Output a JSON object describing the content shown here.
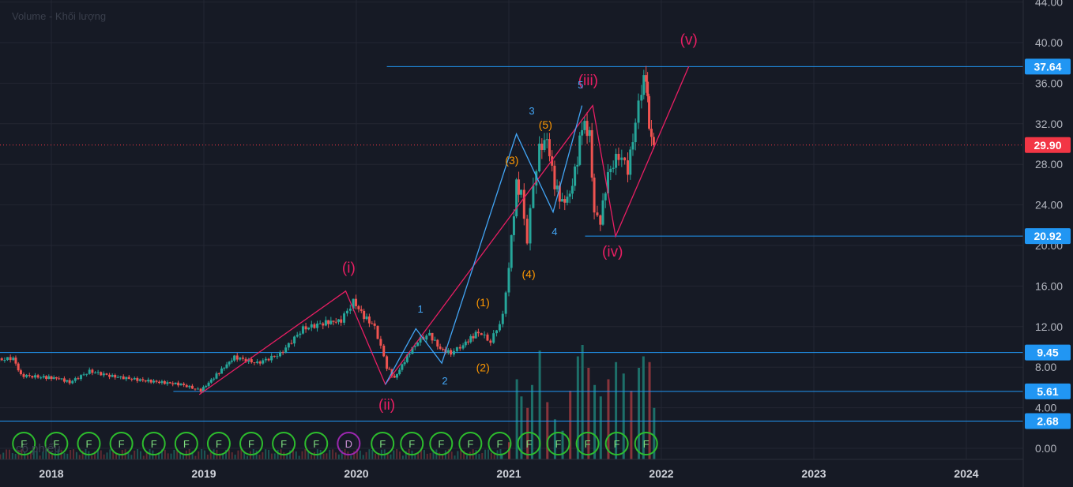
{
  "chart_data": {
    "type": "candlestick",
    "indicator_label": "Volume - Khối lượng",
    "watermark": "cổ phiếu",
    "x_ticks": [
      "2018",
      "2019",
      "2020",
      "2021",
      "2022",
      "2023",
      "2024"
    ],
    "y_ticks": [
      "0.00",
      "4.00",
      "8.00",
      "12.00",
      "16.00",
      "20.00",
      "24.00",
      "28.00",
      "32.00",
      "36.00",
      "40.00",
      "44.00"
    ],
    "ylim": [
      0,
      44
    ],
    "current_price": {
      "value": 29.9,
      "label": "29.90",
      "color": "#f23645"
    },
    "horizontal_levels": [
      {
        "value": 37.64,
        "label": "37.64",
        "start": 2020.2
      },
      {
        "value": 20.92,
        "label": "20.92",
        "start": 2021.5
      },
      {
        "value": 9.45,
        "label": "9.45",
        "start": 2017.6
      },
      {
        "value": 5.61,
        "label": "5.61",
        "start": 2018.8
      },
      {
        "value": 2.68,
        "label": "2.68",
        "start": 2017.6
      }
    ],
    "price_path": [
      [
        2017.6,
        8.6
      ],
      [
        2017.75,
        8.9
      ],
      [
        2017.8,
        7.2
      ],
      [
        2017.95,
        7.0
      ],
      [
        2018.05,
        6.9
      ],
      [
        2018.12,
        6.5
      ],
      [
        2018.25,
        7.6
      ],
      [
        2018.4,
        7.1
      ],
      [
        2018.6,
        6.7
      ],
      [
        2018.85,
        6.3
      ],
      [
        2018.98,
        5.7
      ],
      [
        2019.1,
        7.5
      ],
      [
        2019.2,
        9.0
      ],
      [
        2019.35,
        8.4
      ],
      [
        2019.5,
        9.3
      ],
      [
        2019.65,
        11.8
      ],
      [
        2019.8,
        12.4
      ],
      [
        2019.9,
        12.6
      ],
      [
        2019.98,
        14.5
      ],
      [
        2020.05,
        13.0
      ],
      [
        2020.12,
        12.0
      ],
      [
        2020.2,
        8.0
      ],
      [
        2020.25,
        6.9
      ],
      [
        2020.35,
        9.5
      ],
      [
        2020.42,
        10.8
      ],
      [
        2020.48,
        11.2
      ],
      [
        2020.55,
        9.8
      ],
      [
        2020.62,
        9.4
      ],
      [
        2020.7,
        10.2
      ],
      [
        2020.8,
        11.5
      ],
      [
        2020.88,
        10.5
      ],
      [
        2020.96,
        13.0
      ],
      [
        2021.0,
        18.0
      ],
      [
        2021.05,
        26.0
      ],
      [
        2021.08,
        25.0
      ],
      [
        2021.12,
        20.5
      ],
      [
        2021.16,
        26.0
      ],
      [
        2021.2,
        29.5
      ],
      [
        2021.25,
        30.5
      ],
      [
        2021.3,
        26.0
      ],
      [
        2021.35,
        24.2
      ],
      [
        2021.4,
        25.0
      ],
      [
        2021.45,
        28.5
      ],
      [
        2021.48,
        32.0
      ],
      [
        2021.53,
        31.0
      ],
      [
        2021.56,
        23.0
      ],
      [
        2021.6,
        22.5
      ],
      [
        2021.65,
        27.0
      ],
      [
        2021.72,
        29.0
      ],
      [
        2021.78,
        27.5
      ],
      [
        2021.83,
        32.0
      ],
      [
        2021.87,
        35.5
      ],
      [
        2021.9,
        36.8
      ],
      [
        2021.92,
        31.5
      ],
      [
        2021.95,
        29.9
      ]
    ],
    "volume": [
      [
        2020.95,
        0.5
      ],
      [
        2021.0,
        1.5
      ],
      [
        2021.05,
        7.0
      ],
      [
        2021.08,
        5.5
      ],
      [
        2021.12,
        4.5
      ],
      [
        2021.15,
        6.5
      ],
      [
        2021.2,
        9.5
      ],
      [
        2021.25,
        5.0
      ],
      [
        2021.3,
        3.5
      ],
      [
        2021.35,
        2.5
      ],
      [
        2021.4,
        6.0
      ],
      [
        2021.45,
        9.0
      ],
      [
        2021.48,
        10.0
      ],
      [
        2021.52,
        8.0
      ],
      [
        2021.56,
        6.5
      ],
      [
        2021.6,
        5.5
      ],
      [
        2021.65,
        7.0
      ],
      [
        2021.7,
        8.5
      ],
      [
        2021.75,
        7.5
      ],
      [
        2021.8,
        6.0
      ],
      [
        2021.85,
        8.0
      ],
      [
        2021.88,
        9.0
      ],
      [
        2021.92,
        8.5
      ],
      [
        2021.95,
        4.5
      ]
    ],
    "wave_labels_major": [
      {
        "text": "(i)",
        "x": 2019.95,
        "y": 17.3
      },
      {
        "text": "(ii)",
        "x": 2020.2,
        "y": 3.8
      },
      {
        "text": "(iii)",
        "x": 2021.52,
        "y": 35.8
      },
      {
        "text": "(iv)",
        "x": 2021.68,
        "y": 18.9
      },
      {
        "text": "(v)",
        "x": 2022.18,
        "y": 39.8
      }
    ],
    "wave_labels_minor": [
      {
        "text": "1",
        "x": 2020.42,
        "y": 13.4
      },
      {
        "text": "2",
        "x": 2020.58,
        "y": 6.3
      },
      {
        "text": "3",
        "x": 2021.15,
        "y": 32.9
      },
      {
        "text": "4",
        "x": 2021.3,
        "y": 21.0
      },
      {
        "text": "5",
        "x": 2021.47,
        "y": 35.5
      }
    ],
    "wave_labels_sub": [
      {
        "text": "(1)",
        "x": 2020.83,
        "y": 14.0
      },
      {
        "text": "(2)",
        "x": 2020.83,
        "y": 7.6
      },
      {
        "text": "(3)",
        "x": 2021.02,
        "y": 28.0
      },
      {
        "text": "(4)",
        "x": 2021.13,
        "y": 16.8
      },
      {
        "text": "(5)",
        "x": 2021.24,
        "y": 31.5
      }
    ],
    "major_wave_path": [
      [
        2018.97,
        5.3
      ],
      [
        2019.93,
        15.5
      ],
      [
        2020.19,
        6.3
      ],
      [
        2021.55,
        33.8
      ],
      [
        2021.7,
        20.9
      ],
      [
        2022.18,
        37.64
      ]
    ],
    "minor_wave_path": [
      [
        2020.19,
        6.3
      ],
      [
        2020.39,
        11.8
      ],
      [
        2020.56,
        8.4
      ],
      [
        2021.05,
        31.0
      ],
      [
        2021.29,
        23.3
      ],
      [
        2021.48,
        33.8
      ]
    ],
    "event_markers": [
      "F",
      "F",
      "F",
      "F",
      "F",
      "F",
      "F",
      "F",
      "F",
      "F",
      "D",
      "F",
      "F",
      "F",
      "F",
      "F",
      "F",
      "F",
      "F",
      "F",
      "F"
    ]
  }
}
